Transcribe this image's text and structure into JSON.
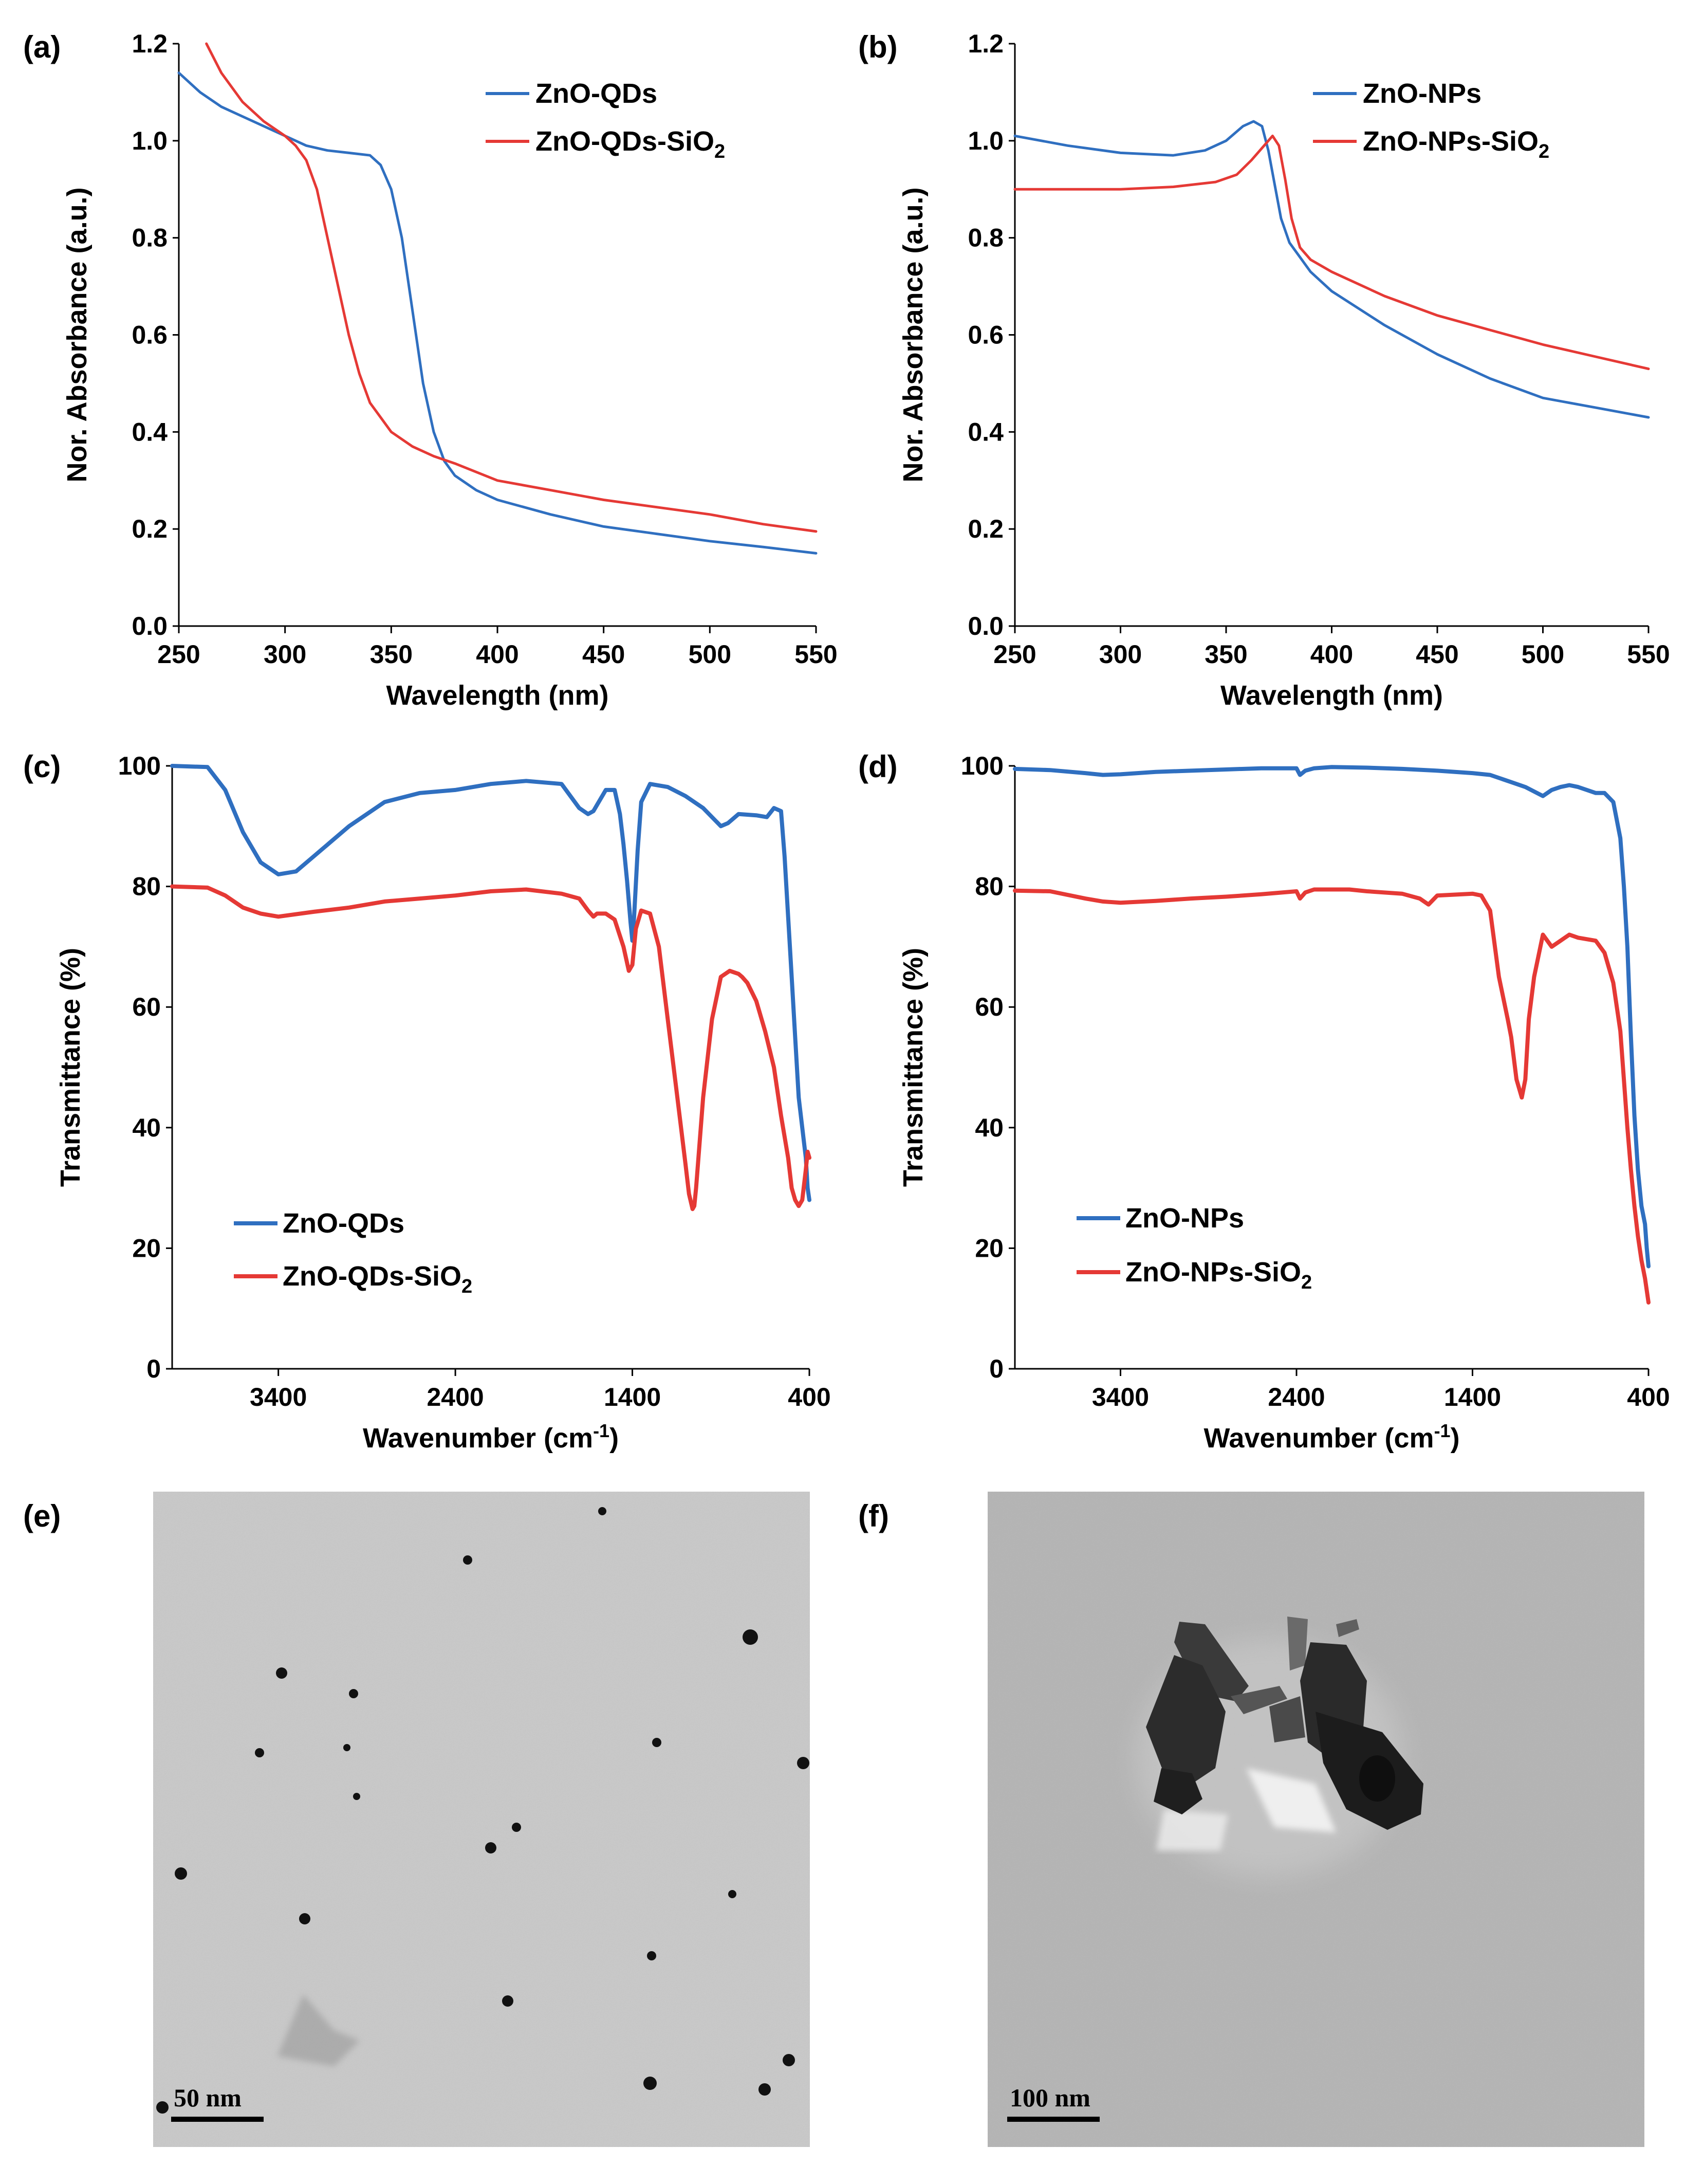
{
  "chart_data": [
    {
      "panel": "(a)",
      "type": "line",
      "xlabel": "Wavelength (nm)",
      "ylabel": "Nor. Absorbance (a.u.)",
      "xlim": [
        250,
        550
      ],
      "ylim": [
        0,
        1.2
      ],
      "xticks": [
        250,
        300,
        350,
        400,
        450,
        500,
        550
      ],
      "yticks": [
        0.0,
        0.2,
        0.4,
        0.6,
        0.8,
        1.0,
        1.2
      ],
      "ytick_decimals": 1,
      "legend_position": "top-right",
      "series": [
        {
          "name": "ZnO-QDs",
          "color": "#2f6fc0",
          "x": [
            250,
            260,
            270,
            280,
            290,
            300,
            310,
            320,
            330,
            340,
            345,
            350,
            355,
            360,
            365,
            370,
            375,
            380,
            390,
            400,
            425,
            450,
            475,
            500,
            525,
            550
          ],
          "y": [
            1.14,
            1.1,
            1.07,
            1.05,
            1.03,
            1.01,
            0.99,
            0.98,
            0.975,
            0.97,
            0.95,
            0.9,
            0.8,
            0.65,
            0.5,
            0.4,
            0.34,
            0.31,
            0.28,
            0.26,
            0.23,
            0.205,
            0.19,
            0.175,
            0.163,
            0.15
          ]
        },
        {
          "name": "ZnO-QDs-SiO2",
          "color": "#e53935",
          "x": [
            263,
            270,
            280,
            290,
            300,
            305,
            310,
            315,
            320,
            325,
            330,
            335,
            340,
            345,
            350,
            360,
            370,
            380,
            400,
            425,
            450,
            475,
            500,
            525,
            550
          ],
          "y": [
            1.2,
            1.14,
            1.08,
            1.04,
            1.01,
            0.99,
            0.96,
            0.9,
            0.8,
            0.7,
            0.6,
            0.52,
            0.46,
            0.43,
            0.4,
            0.37,
            0.35,
            0.335,
            0.3,
            0.28,
            0.26,
            0.245,
            0.23,
            0.21,
            0.195
          ]
        }
      ]
    },
    {
      "panel": "(b)",
      "type": "line",
      "xlabel": "Wavelength (nm)",
      "ylabel": "Nor. Absorbance (a.u.)",
      "xlim": [
        250,
        550
      ],
      "ylim": [
        0,
        1.2
      ],
      "xticks": [
        250,
        300,
        350,
        400,
        450,
        500,
        550
      ],
      "yticks": [
        0.0,
        0.2,
        0.4,
        0.6,
        0.8,
        1.0,
        1.2
      ],
      "ytick_decimals": 1,
      "legend_position": "top-right",
      "series": [
        {
          "name": "ZnO-NPs",
          "color": "#2f6fc0",
          "x": [
            250,
            275,
            300,
            325,
            340,
            350,
            358,
            363,
            367,
            370,
            373,
            376,
            380,
            385,
            390,
            400,
            425,
            450,
            475,
            500,
            525,
            550
          ],
          "y": [
            1.01,
            0.99,
            0.975,
            0.97,
            0.98,
            1.0,
            1.03,
            1.04,
            1.03,
            0.98,
            0.91,
            0.84,
            0.79,
            0.76,
            0.73,
            0.69,
            0.62,
            0.56,
            0.51,
            0.47,
            0.45,
            0.43
          ]
        },
        {
          "name": "ZnO-NPs-SiO2",
          "color": "#e53935",
          "x": [
            250,
            275,
            300,
            325,
            345,
            355,
            362,
            368,
            372,
            375,
            378,
            381,
            385,
            390,
            400,
            425,
            450,
            475,
            500,
            525,
            550
          ],
          "y": [
            0.9,
            0.9,
            0.9,
            0.905,
            0.915,
            0.93,
            0.96,
            0.99,
            1.01,
            0.99,
            0.92,
            0.84,
            0.78,
            0.755,
            0.73,
            0.68,
            0.64,
            0.61,
            0.58,
            0.555,
            0.53
          ]
        }
      ]
    },
    {
      "panel": "(c)",
      "type": "line",
      "xlabel": "Wavenumber (cm-1)",
      "xlabel_base": "Wavenumber (cm",
      "xlabel_sup": "-1",
      "xlabel_tail": ")",
      "ylabel": "Transmittance (%)",
      "xlim": [
        4000,
        400
      ],
      "ylim": [
        0,
        100
      ],
      "xticks": [
        3400,
        2400,
        1400,
        400
      ],
      "yticks": [
        0,
        20,
        40,
        60,
        80,
        100
      ],
      "ytick_decimals": 0,
      "legend_position": "bottom-left",
      "series": [
        {
          "name": "ZnO-QDs",
          "color": "#2f6fc0",
          "x": [
            4000,
            3800,
            3700,
            3600,
            3500,
            3400,
            3300,
            3200,
            3000,
            2800,
            2600,
            2400,
            2200,
            2000,
            1800,
            1700,
            1650,
            1620,
            1600,
            1550,
            1500,
            1470,
            1450,
            1430,
            1410,
            1400,
            1390,
            1370,
            1350,
            1300,
            1200,
            1100,
            1000,
            900,
            860,
            800,
            700,
            640,
            600,
            560,
            540,
            520,
            500,
            480,
            460,
            440,
            420,
            410,
            400
          ],
          "y": [
            100,
            99.8,
            96,
            89,
            84,
            82,
            82.5,
            85,
            90,
            94,
            95.5,
            96,
            97,
            97.5,
            97,
            93,
            92,
            92.5,
            93.5,
            96,
            96,
            92,
            87,
            81,
            74,
            71,
            75,
            86,
            94,
            97,
            96.5,
            95,
            93,
            90,
            90.5,
            92,
            91.8,
            91.5,
            93,
            92.5,
            85,
            75,
            65,
            55,
            45,
            40,
            35,
            30,
            28
          ]
        },
        {
          "name": "ZnO-QDs-SiO2",
          "color": "#e53935",
          "x": [
            4000,
            3800,
            3700,
            3600,
            3500,
            3400,
            3200,
            3000,
            2800,
            2600,
            2400,
            2200,
            2000,
            1800,
            1700,
            1650,
            1620,
            1600,
            1550,
            1500,
            1450,
            1420,
            1400,
            1380,
            1350,
            1300,
            1250,
            1200,
            1150,
            1100,
            1080,
            1060,
            1050,
            1040,
            1000,
            950,
            900,
            850,
            800,
            780,
            750,
            700,
            650,
            600,
            560,
            520,
            500,
            480,
            460,
            440,
            420,
            410,
            400
          ],
          "y": [
            80,
            79.8,
            78.5,
            76.5,
            75.5,
            75,
            75.8,
            76.5,
            77.5,
            78,
            78.5,
            79.2,
            79.5,
            78.8,
            78,
            76,
            75,
            75.5,
            75.5,
            74.5,
            70,
            66,
            67,
            73,
            76,
            75.5,
            70,
            58,
            46,
            34,
            29,
            26.5,
            27,
            30,
            45,
            58,
            65,
            66,
            65.5,
            65,
            64,
            61,
            56,
            50,
            42,
            35,
            30,
            28,
            27,
            28,
            33,
            36,
            35
          ]
        }
      ]
    },
    {
      "panel": "(d)",
      "type": "line",
      "xlabel": "Wavenumber (cm-1)",
      "xlabel_base": "Wavenumber (cm",
      "xlabel_sup": "-1",
      "xlabel_tail": ")",
      "ylabel": "Transmittance (%)",
      "xlim": [
        4000,
        400
      ],
      "ylim": [
        0,
        100
      ],
      "xticks": [
        3400,
        2400,
        1400,
        400
      ],
      "yticks": [
        0,
        20,
        40,
        60,
        80,
        100
      ],
      "ytick_decimals": 0,
      "legend_position": "bottom-left",
      "series": [
        {
          "name": "ZnO-NPs",
          "color": "#2f6fc0",
          "x": [
            4000,
            3800,
            3600,
            3500,
            3400,
            3200,
            3000,
            2800,
            2600,
            2400,
            2380,
            2350,
            2300,
            2200,
            2000,
            1800,
            1600,
            1400,
            1300,
            1200,
            1100,
            1000,
            950,
            900,
            850,
            800,
            700,
            650,
            600,
            560,
            540,
            520,
            500,
            480,
            460,
            440,
            420,
            410,
            400
          ],
          "y": [
            99.5,
            99.3,
            98.8,
            98.5,
            98.6,
            99,
            99.2,
            99.4,
            99.6,
            99.6,
            98.5,
            99.2,
            99.6,
            99.8,
            99.7,
            99.5,
            99.2,
            98.8,
            98.5,
            97.5,
            96.5,
            95,
            96,
            96.5,
            96.8,
            96.5,
            95.5,
            95.5,
            94,
            88,
            80,
            70,
            55,
            42,
            33,
            27,
            24,
            20,
            17
          ]
        },
        {
          "name": "ZnO-NPs-SiO2",
          "color": "#e53935",
          "x": [
            4000,
            3800,
            3600,
            3500,
            3400,
            3200,
            3000,
            2800,
            2600,
            2400,
            2380,
            2350,
            2300,
            2200,
            2100,
            2000,
            1800,
            1700,
            1650,
            1600,
            1400,
            1350,
            1300,
            1250,
            1200,
            1180,
            1150,
            1120,
            1100,
            1080,
            1050,
            1000,
            950,
            900,
            850,
            800,
            700,
            650,
            600,
            560,
            540,
            520,
            500,
            480,
            460,
            440,
            420,
            410,
            400
          ],
          "y": [
            79.3,
            79.2,
            78,
            77.5,
            77.3,
            77.6,
            78,
            78.3,
            78.7,
            79.2,
            78,
            79,
            79.5,
            79.5,
            79.5,
            79.2,
            78.8,
            78,
            77,
            78.5,
            78.8,
            78.5,
            76,
            65,
            58,
            55,
            48,
            45,
            48,
            58,
            65,
            72,
            70,
            71,
            72,
            71.5,
            71,
            69,
            64,
            56,
            48,
            40,
            33,
            27,
            22,
            18,
            15,
            13,
            11
          ]
        }
      ]
    }
  ],
  "panels": {
    "a": {
      "label": "(a)",
      "legend": [
        {
          "text": "ZnO-QDs"
        },
        {
          "text": "ZnO-QDs-SiO",
          "sub": "2"
        }
      ]
    },
    "b": {
      "label": "(b)",
      "legend": [
        {
          "text": "ZnO-NPs"
        },
        {
          "text": "ZnO-NPs-SiO",
          "sub": "2"
        }
      ]
    },
    "c": {
      "label": "(c)",
      "legend": [
        {
          "text": "ZnO-QDs"
        },
        {
          "text": "ZnO-QDs-SiO",
          "sub": "2"
        }
      ]
    },
    "d": {
      "label": "(d)",
      "legend": [
        {
          "text": "ZnO-NPs"
        },
        {
          "text": "ZnO-NPs-SiO",
          "sub": "2"
        }
      ]
    },
    "e": {
      "label": "(e)",
      "scale_bar": "50 nm"
    },
    "f": {
      "label": "(f)",
      "scale_bar": "100 nm"
    }
  },
  "colors": {
    "blue_series": "#2f6fc0",
    "red_series": "#e53935",
    "tem_e_bg": "#c9c9c9",
    "tem_f_bg": "#b4b4b4"
  }
}
